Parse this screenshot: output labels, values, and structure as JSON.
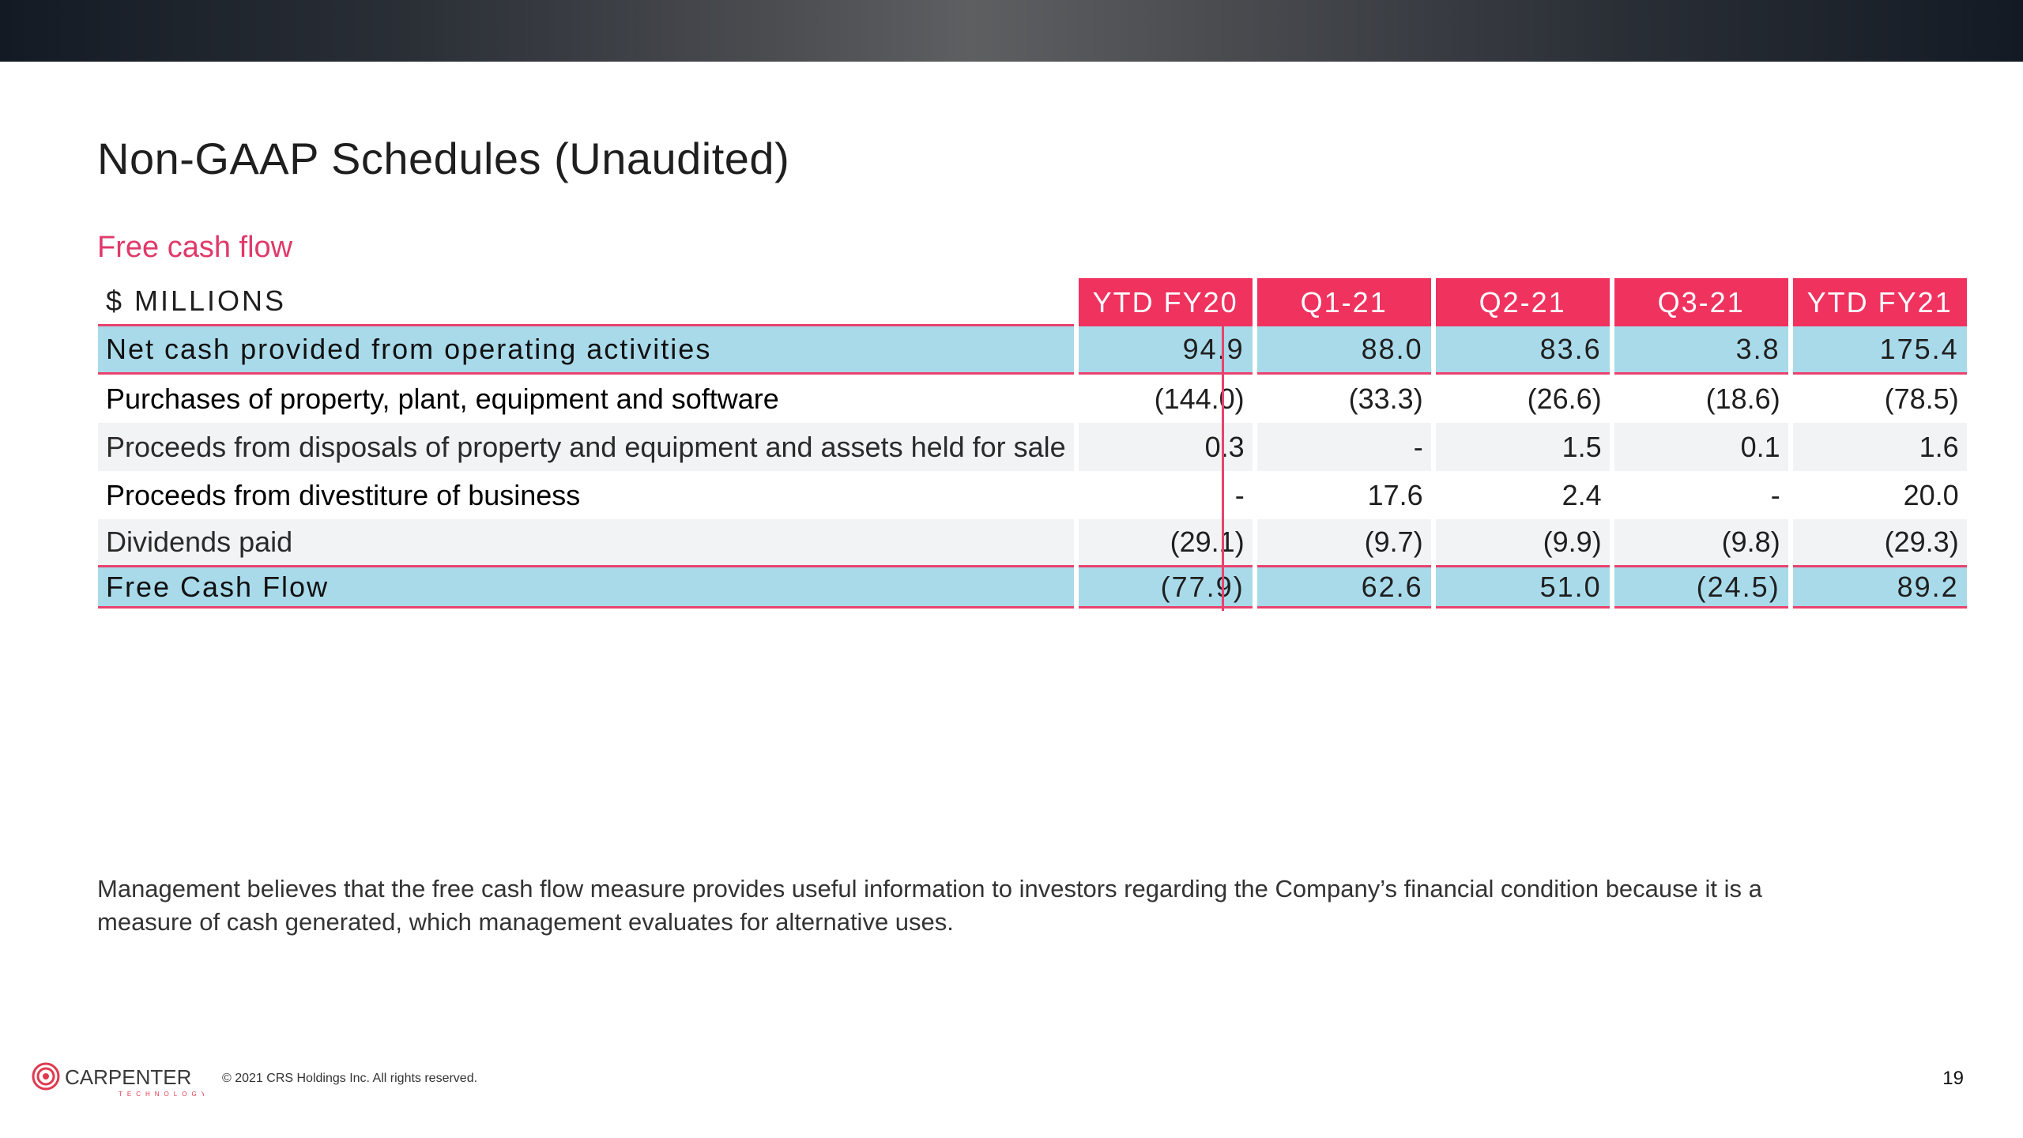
{
  "page": {
    "title": "Non-GAAP Schedules (Unaudited)",
    "section": "Free cash flow",
    "page_number": "19"
  },
  "table": {
    "label_header": "$ MILLIONS",
    "columns": [
      "YTD FY20",
      "Q1-21",
      "Q2-21",
      "Q3-21",
      "YTD FY21"
    ],
    "rows": [
      {
        "label": "Net cash provided from operating activities",
        "values": [
          "94.9",
          "88.0",
          "83.6",
          "3.8",
          "175.4"
        ]
      },
      {
        "label": "Purchases of property, plant, equipment and software",
        "values": [
          "(144.0)",
          "(33.3)",
          "(26.6)",
          "(18.6)",
          "(78.5)"
        ]
      },
      {
        "label": "Proceeds from disposals of property and equipment and assets held for sale",
        "values": [
          "0.3",
          "-",
          "1.5",
          "0.1",
          "1.6"
        ]
      },
      {
        "label": "Proceeds from divestiture of business",
        "values": [
          "-",
          "17.6",
          "2.4",
          "-",
          "20.0"
        ]
      },
      {
        "label": "Dividends paid",
        "values": [
          "(29.1)",
          "(9.7)",
          "(9.9)",
          "(9.8)",
          "(29.3)"
        ]
      },
      {
        "label": "Free Cash Flow",
        "values": [
          "(77.9)",
          "62.6",
          "51.0",
          "(24.5)",
          "89.2"
        ]
      }
    ]
  },
  "note": "Management believes that the free cash flow measure provides useful information to investors regarding the Company’s financial condition because it is a measure of cash generated, which management evaluates for alternative uses.",
  "footer": {
    "logo_text": "CARPENTER",
    "logo_subtext": "TECHNOLOGY",
    "copyright": "© 2021 CRS Holdings Inc. All rights reserved."
  },
  "colors": {
    "accent": "#f0325f",
    "highlight_row": "#a9daea",
    "banded_row": "#f2f3f4"
  }
}
